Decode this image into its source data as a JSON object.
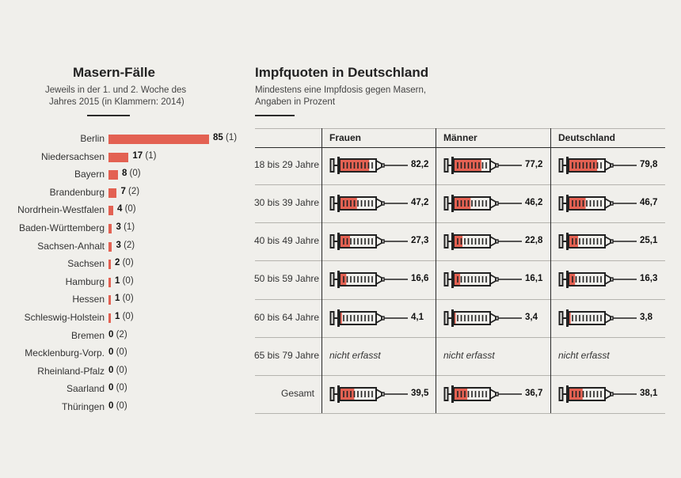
{
  "colors": {
    "accent": "#e36152",
    "ink": "#2b2b2b",
    "background": "#f0efeb"
  },
  "left": {
    "title": "Masern-Fälle",
    "subtitle_line1": "Jeweils in der 1. und 2. Woche des",
    "subtitle_line2": "Jahres 2015 (in Klammern: 2014)"
  },
  "right": {
    "title": "Impfquoten in Deutschland",
    "subtitle_line1": "Mindestens eine Impfdosis gegen Masern,",
    "subtitle_line2": "Angaben in Prozent",
    "not_recorded": "nicht erfasst"
  },
  "chart_data": [
    {
      "type": "bar",
      "orientation": "horizontal",
      "title": "Masern-Fälle",
      "categories": [
        "Berlin",
        "Niedersachsen",
        "Bayern",
        "Brandenburg",
        "Nordrhein-Westfalen",
        "Baden-Württemberg",
        "Sachsen-Anhalt",
        "Sachsen",
        "Hamburg",
        "Hessen",
        "Schleswig-Holstein",
        "Bremen",
        "Mecklenburg-Vorp.",
        "Rheinland-Pfalz",
        "Saarland",
        "Thüringen"
      ],
      "series": [
        {
          "name": "2015",
          "values": [
            85,
            17,
            8,
            7,
            4,
            3,
            3,
            2,
            1,
            1,
            1,
            0,
            0,
            0,
            0,
            0
          ]
        },
        {
          "name": "2014",
          "values": [
            1,
            1,
            0,
            2,
            0,
            1,
            2,
            0,
            0,
            0,
            0,
            2,
            0,
            0,
            0,
            0
          ]
        }
      ]
    },
    {
      "type": "table",
      "title": "Impfquoten in Deutschland",
      "columns": [
        "Frauen",
        "Männer",
        "Deutschland"
      ],
      "rows": [
        "18 bis 29 Jahre",
        "30 bis 39 Jahre",
        "40 bis 49 Jahre",
        "50 bis 59 Jahre",
        "60 bis 64 Jahre",
        "65 bis 79 Jahre",
        "Gesamt"
      ],
      "values": [
        [
          "82,2",
          "77,2",
          "79,8"
        ],
        [
          "47,2",
          "46,2",
          "46,7"
        ],
        [
          "27,3",
          "22,8",
          "25,1"
        ],
        [
          "16,6",
          "16,1",
          "16,3"
        ],
        [
          "4,1",
          "3,4",
          "3,8"
        ],
        [
          null,
          null,
          null
        ],
        [
          "39,5",
          "36,7",
          "38,1"
        ]
      ],
      "numeric": [
        [
          82.2,
          77.2,
          79.8
        ],
        [
          47.2,
          46.2,
          46.7
        ],
        [
          27.3,
          22.8,
          25.1
        ],
        [
          16.6,
          16.1,
          16.3
        ],
        [
          4.1,
          3.4,
          3.8
        ],
        [
          null,
          null,
          null
        ],
        [
          39.5,
          36.7,
          38.1
        ]
      ]
    }
  ]
}
